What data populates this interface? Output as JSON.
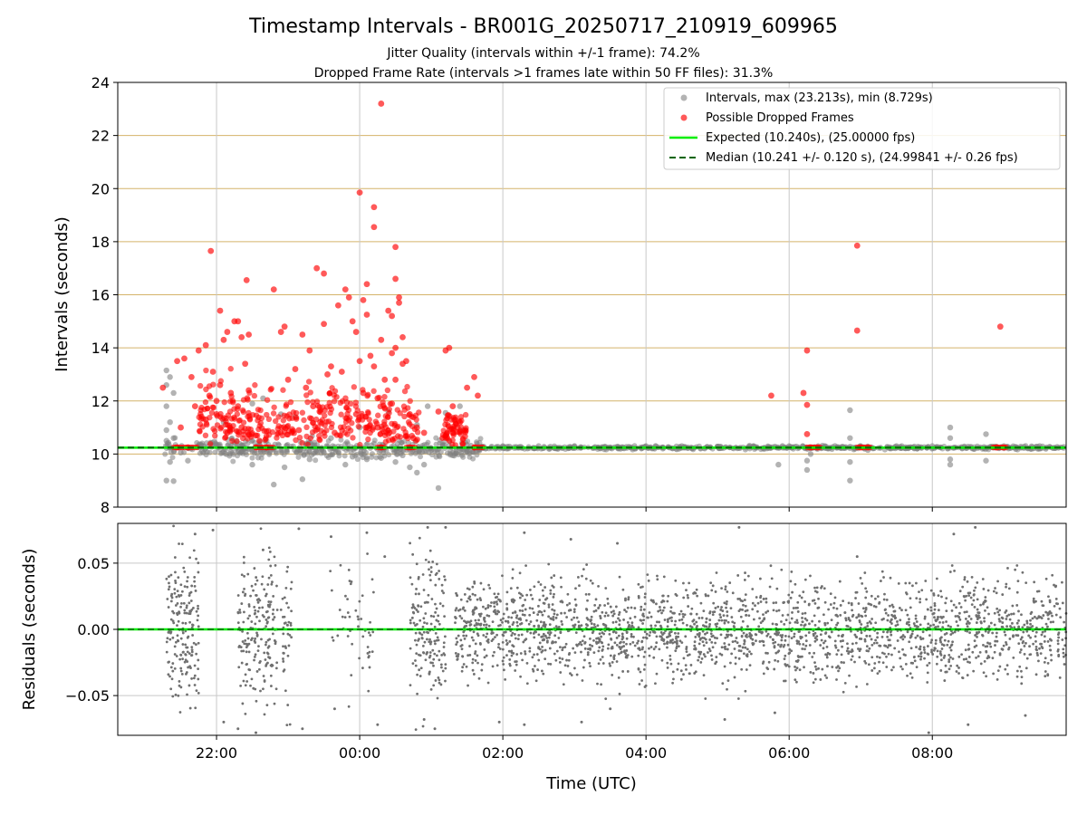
{
  "chart_data": [
    {
      "panel": "intervals",
      "type": "scatter",
      "title": "Timestamp Intervals - BR001G_20250717_210919_609965",
      "subtitle_lines": [
        "Jitter Quality (intervals within +/-1 frame): 74.2%",
        "Dropped Frame Rate (intervals >1 frames late within 50 FF files): 31.3%"
      ],
      "ylabel": "Intervals (seconds)",
      "ylim": [
        8,
        24
      ],
      "yticks": [
        "8",
        "10",
        "12",
        "14",
        "16",
        "18",
        "20",
        "22",
        "24"
      ],
      "xlim_hours": [
        20.62,
        33.87
      ],
      "grid": true,
      "legend_placement": "upper-right",
      "legend": [
        "Intervals, max (23.213s), min (8.729s)",
        "Possible Dropped Frames",
        "Expected (10.240s), (25.00000 fps)",
        "Median (10.241 +/- 0.120 s), (24.99841 +/- 0.26 fps)"
      ],
      "expected_line": 10.24,
      "median_line": 10.241,
      "colors": {
        "intervals": "#808080",
        "dropped": "#ff0000",
        "expected": "#00ee00",
        "median": "#006400",
        "hgrid": "#d4b36a",
        "vgrid": "#c8c8c8"
      },
      "series": [
        {
          "name": "Intervals, max (23.213s), min (8.729s)",
          "points": [
            [
              21.3,
              9.0
            ],
            [
              21.4,
              8.98
            ],
            [
              21.35,
              9.7
            ],
            [
              21.5,
              10.05
            ],
            [
              21.6,
              9.75
            ],
            [
              21.8,
              10.1
            ],
            [
              22.2,
              10.1
            ],
            [
              22.4,
              10.2
            ],
            [
              22.5,
              9.6
            ],
            [
              22.7,
              10.1
            ],
            [
              22.8,
              8.85
            ],
            [
              22.95,
              9.5
            ],
            [
              23.2,
              9.05
            ],
            [
              23.3,
              9.8
            ],
            [
              23.5,
              10.05
            ],
            [
              23.7,
              10.1
            ],
            [
              23.8,
              9.6
            ],
            [
              23.9,
              9.9
            ],
            [
              24.1,
              9.8
            ],
            [
              24.3,
              9.85
            ],
            [
              24.5,
              9.7
            ],
            [
              24.6,
              9.95
            ],
            [
              24.7,
              9.5
            ],
            [
              24.8,
              9.3
            ],
            [
              24.9,
              9.6
            ],
            [
              25.0,
              10.15
            ],
            [
              25.1,
              8.72
            ],
            [
              25.3,
              9.95
            ],
            [
              25.5,
              10.1
            ],
            [
              21.3,
              13.15
            ],
            [
              21.35,
              12.9
            ],
            [
              21.3,
              12.6
            ],
            [
              21.4,
              12.3
            ],
            [
              21.3,
              11.8
            ],
            [
              21.35,
              11.2
            ],
            [
              21.3,
              10.9
            ],
            [
              21.4,
              10.6
            ],
            [
              21.3,
              10.5
            ],
            [
              22.1,
              11.2
            ],
            [
              22.5,
              11.9
            ],
            [
              22.65,
              12.1
            ],
            [
              22.9,
              11.5
            ],
            [
              23.1,
              11.4
            ],
            [
              23.6,
              10.6
            ],
            [
              24.0,
              11.0
            ],
            [
              24.4,
              11.6
            ],
            [
              24.8,
              11.1
            ],
            [
              24.95,
              11.8
            ],
            [
              25.2,
              11.55
            ],
            [
              25.4,
              11.8
            ],
            [
              25.45,
              10.9
            ],
            [
              25.5,
              10.2
            ],
            [
              26.0,
              10.3
            ],
            [
              26.5,
              10.3
            ],
            [
              27.0,
              10.3
            ],
            [
              27.5,
              10.25
            ],
            [
              28.0,
              10.3
            ],
            [
              28.5,
              10.3
            ],
            [
              29.0,
              10.28
            ],
            [
              29.5,
              10.3
            ],
            [
              30.0,
              10.3
            ],
            [
              30.5,
              10.3
            ],
            [
              31.0,
              10.3
            ],
            [
              31.5,
              10.3
            ],
            [
              32.0,
              10.3
            ],
            [
              32.5,
              10.28
            ],
            [
              33.0,
              10.3
            ],
            [
              33.5,
              10.3
            ],
            [
              29.85,
              9.6
            ],
            [
              30.25,
              9.75
            ],
            [
              30.25,
              9.4
            ],
            [
              30.3,
              10.0
            ],
            [
              30.85,
              11.65
            ],
            [
              30.85,
              10.6
            ],
            [
              30.85,
              9.7
            ],
            [
              30.85,
              9.0
            ],
            [
              31.1,
              10.15
            ],
            [
              32.25,
              11.0
            ],
            [
              32.25,
              10.6
            ],
            [
              32.25,
              9.8
            ],
            [
              32.25,
              9.6
            ],
            [
              32.75,
              10.75
            ],
            [
              32.75,
              9.75
            ]
          ]
        },
        {
          "name": "Possible Dropped Frames",
          "points": [
            [
              21.25,
              12.5
            ],
            [
              21.45,
              13.5
            ],
            [
              21.55,
              13.6
            ],
            [
              21.65,
              12.9
            ],
            [
              21.75,
              13.9
            ],
            [
              21.85,
              14.1
            ],
            [
              21.92,
              17.65
            ],
            [
              21.95,
              13.1
            ],
            [
              22.0,
              12.0
            ],
            [
              22.05,
              15.4
            ],
            [
              22.1,
              14.3
            ],
            [
              22.15,
              14.6
            ],
            [
              22.25,
              15.0
            ],
            [
              22.3,
              15.0
            ],
            [
              22.35,
              14.4
            ],
            [
              22.4,
              13.4
            ],
            [
              22.45,
              14.5
            ],
            [
              22.42,
              16.55
            ],
            [
              22.05,
              12.6
            ],
            [
              22.0,
              11.5
            ],
            [
              22.2,
              12.3
            ],
            [
              22.3,
              11.8
            ],
            [
              22.35,
              11.0
            ],
            [
              22.45,
              12.4
            ],
            [
              22.55,
              10.7
            ],
            [
              22.8,
              16.2
            ],
            [
              22.95,
              14.8
            ],
            [
              22.9,
              14.6
            ],
            [
              23.0,
              12.8
            ],
            [
              23.1,
              13.2
            ],
            [
              23.2,
              14.5
            ],
            [
              23.25,
              12.5
            ],
            [
              23.3,
              13.9
            ],
            [
              23.35,
              11.8
            ],
            [
              23.4,
              17.0
            ],
            [
              23.5,
              16.8
            ],
            [
              23.5,
              14.9
            ],
            [
              23.55,
              13.0
            ],
            [
              23.6,
              13.3
            ],
            [
              23.7,
              15.6
            ],
            [
              23.75,
              13.1
            ],
            [
              23.8,
              16.2
            ],
            [
              23.85,
              15.9
            ],
            [
              23.9,
              15.0
            ],
            [
              23.95,
              14.6
            ],
            [
              24.0,
              13.5
            ],
            [
              24.05,
              12.3
            ],
            [
              24.1,
              16.4
            ],
            [
              24.15,
              13.7
            ],
            [
              24.2,
              13.3
            ],
            [
              24.25,
              12.1
            ],
            [
              24.3,
              14.3
            ],
            [
              24.0,
              19.85
            ],
            [
              24.05,
              15.8
            ],
            [
              24.1,
              15.25
            ],
            [
              24.2,
              19.3
            ],
            [
              24.2,
              18.55
            ],
            [
              24.3,
              23.2
            ],
            [
              24.35,
              12.8
            ],
            [
              24.4,
              15.4
            ],
            [
              24.45,
              13.8
            ],
            [
              24.45,
              15.2
            ],
            [
              24.5,
              16.6
            ],
            [
              24.55,
              15.9
            ],
            [
              24.5,
              17.8
            ],
            [
              24.55,
              15.7
            ],
            [
              24.6,
              14.4
            ],
            [
              24.6,
              13.4
            ],
            [
              24.65,
              13.5
            ],
            [
              24.5,
              14.0
            ],
            [
              24.5,
              12.8
            ],
            [
              24.7,
              11.5
            ],
            [
              24.8,
              11.0
            ],
            [
              24.9,
              10.8
            ],
            [
              25.1,
              11.6
            ],
            [
              25.2,
              13.9
            ],
            [
              25.25,
              14.0
            ],
            [
              25.3,
              11.8
            ],
            [
              25.4,
              11.2
            ],
            [
              25.5,
              12.5
            ],
            [
              25.6,
              12.9
            ],
            [
              25.65,
              12.2
            ],
            [
              21.5,
              11.0
            ],
            [
              21.7,
              11.8
            ],
            [
              21.85,
              11.3
            ],
            [
              21.9,
              12.2
            ],
            [
              22.15,
              10.8
            ],
            [
              22.6,
              10.5
            ],
            [
              23.15,
              10.9
            ],
            [
              23.45,
              11.2
            ],
            [
              23.65,
              10.8
            ],
            [
              23.95,
              11.5
            ],
            [
              24.25,
              11.0
            ],
            [
              24.45,
              11.9
            ],
            [
              24.75,
              10.6
            ],
            [
              25.3,
              10.8
            ],
            [
              29.75,
              12.2
            ],
            [
              30.2,
              12.3
            ],
            [
              30.25,
              13.9
            ],
            [
              30.25,
              11.85
            ],
            [
              30.25,
              10.75
            ],
            [
              30.95,
              17.85
            ],
            [
              30.95,
              14.65
            ],
            [
              32.95,
              14.8
            ],
            [
              21.45,
              10.25
            ],
            [
              21.6,
              10.25
            ],
            [
              22.55,
              10.25
            ],
            [
              22.7,
              10.25
            ],
            [
              24.3,
              10.25
            ],
            [
              24.7,
              10.25
            ],
            [
              25.6,
              10.25
            ],
            [
              30.3,
              10.25
            ],
            [
              30.4,
              10.25
            ],
            [
              31.0,
              10.25
            ],
            [
              31.1,
              10.25
            ],
            [
              32.9,
              10.25
            ],
            [
              33.0,
              10.25
            ]
          ]
        }
      ]
    },
    {
      "panel": "residuals",
      "type": "scatter",
      "ylabel": "Residuals (seconds)",
      "xlabel": "Time (UTC)",
      "ylim": [
        -0.08,
        0.08
      ],
      "yticks": [
        "−0.05",
        "0.00",
        "0.05"
      ],
      "xticks": [
        "22:00",
        "00:00",
        "02:00",
        "04:00",
        "06:00",
        "08:00"
      ],
      "zero_line": 0.0,
      "grid": true,
      "colors": {
        "points": "#707070",
        "line": "#00ee00",
        "median": "#006400"
      },
      "series": [
        {
          "name": "Residuals",
          "points": [
            [
              21.7,
              0.072
            ],
            [
              21.95,
              0.075
            ],
            [
              22.65,
              0.06
            ],
            [
              23.15,
              0.076
            ],
            [
              23.6,
              0.07
            ],
            [
              24.1,
              0.073
            ],
            [
              24.35,
              0.055
            ],
            [
              24.95,
              0.077
            ],
            [
              25.2,
              0.077
            ],
            [
              26.3,
              0.073
            ],
            [
              26.95,
              0.068
            ],
            [
              27.6,
              0.065
            ],
            [
              29.3,
              0.077
            ],
            [
              30.95,
              0.055
            ],
            [
              32.6,
              0.077
            ],
            [
              32.3,
              0.072
            ],
            [
              22.1,
              -0.07
            ],
            [
              22.3,
              -0.075
            ],
            [
              22.55,
              -0.078
            ],
            [
              23.2,
              -0.075
            ],
            [
              23.65,
              -0.06
            ],
            [
              24.25,
              -0.072
            ],
            [
              24.9,
              -0.068
            ],
            [
              25.05,
              -0.075
            ],
            [
              25.95,
              -0.07
            ],
            [
              26.3,
              -0.072
            ],
            [
              27.1,
              -0.07
            ],
            [
              27.5,
              -0.06
            ],
            [
              29.1,
              -0.068
            ],
            [
              29.8,
              -0.063
            ],
            [
              31.95,
              -0.078
            ],
            [
              32.5,
              -0.072
            ],
            [
              33.3,
              -0.065
            ]
          ]
        }
      ]
    }
  ]
}
